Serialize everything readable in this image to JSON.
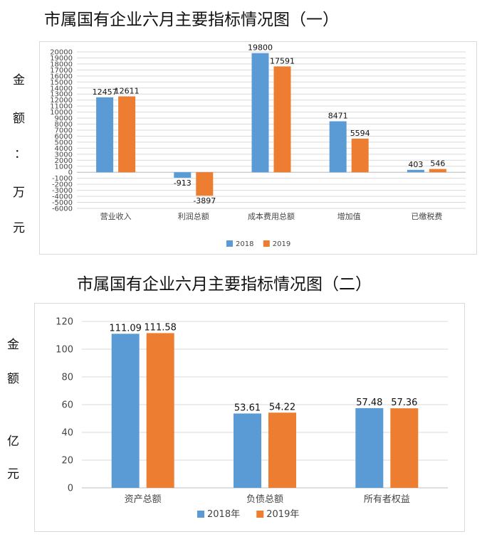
{
  "chart_data": [
    {
      "type": "bar",
      "title": "市属国有企业六月主要指标情况图（一）",
      "ylabel_chars": [
        "金",
        "额",
        "：",
        "万",
        "元"
      ],
      "categories": [
        "营业收入",
        "利润总额",
        "成本费用总额",
        "增加值",
        "已缴税费"
      ],
      "series": [
        {
          "name": "2018",
          "values": [
            12457,
            -913,
            19800,
            8471,
            403
          ],
          "color": "#5b9bd5"
        },
        {
          "name": "2019",
          "values": [
            12611,
            -3897,
            17591,
            5594,
            546
          ],
          "color": "#ed7d31"
        }
      ],
      "ylim": [
        -6000,
        20000
      ],
      "ytick_step": 1000,
      "grid": true,
      "legend": "bottom"
    },
    {
      "type": "bar",
      "title": "市属国有企业六月主要指标情况图（二）",
      "ylabel_chars": [
        "金",
        "额",
        "亿",
        "元"
      ],
      "categories": [
        "资产总额",
        "负债总额",
        "所有者权益"
      ],
      "series": [
        {
          "name": "2018年",
          "values": [
            111.09,
            53.61,
            57.48
          ],
          "color": "#5b9bd5"
        },
        {
          "name": "2019年",
          "values": [
            111.58,
            54.22,
            57.36
          ],
          "color": "#ed7d31"
        }
      ],
      "ylim": [
        0,
        120
      ],
      "ytick_step": 20,
      "grid": true,
      "legend": "bottom"
    }
  ]
}
